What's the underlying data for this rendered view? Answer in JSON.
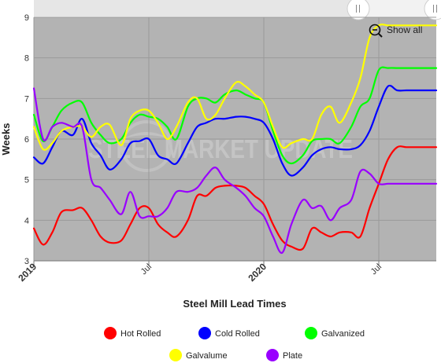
{
  "chart_data": {
    "type": "line",
    "title": "",
    "xlabel": "Steel Mill Lead Times",
    "ylabel": "Weeks",
    "ylim": [
      3,
      9
    ],
    "yticks": [
      "3",
      "4",
      "5",
      "6",
      "7",
      "8",
      "9"
    ],
    "x_tick_labels": [
      {
        "label": "2019",
        "x": 2019.0,
        "major": true
      },
      {
        "label": "Jul",
        "x": 2019.5,
        "major": false
      },
      {
        "label": "2020",
        "x": 2020.0,
        "major": true
      },
      {
        "label": "Jul",
        "x": 2020.5,
        "major": false
      }
    ],
    "xlim": [
      2019.0,
      2020.75
    ],
    "grid": true,
    "legend_position": "bottom",
    "watermark": "STEEL MARKET UPDATE",
    "reset_zoom_label": "Show all",
    "series": [
      {
        "name": "Hot Rolled",
        "color": "#ff0000",
        "x": [
          2019.0,
          2019.04,
          2019.08,
          2019.12,
          2019.17,
          2019.21,
          2019.25,
          2019.29,
          2019.33,
          2019.38,
          2019.42,
          2019.46,
          2019.5,
          2019.54,
          2019.58,
          2019.62,
          2019.67,
          2019.71,
          2019.75,
          2019.79,
          2019.83,
          2019.88,
          2019.92,
          2019.96,
          2020.0,
          2020.04,
          2020.08,
          2020.12,
          2020.17,
          2020.21,
          2020.25,
          2020.29,
          2020.33,
          2020.38,
          2020.42,
          2020.46,
          2020.5,
          2020.54,
          2020.58,
          2020.62,
          2020.67,
          2020.71,
          2020.75
        ],
        "y": [
          3.8,
          3.4,
          3.7,
          4.2,
          4.25,
          4.3,
          4.0,
          3.6,
          3.45,
          3.5,
          3.9,
          4.3,
          4.3,
          3.9,
          3.7,
          3.6,
          4.0,
          4.6,
          4.6,
          4.8,
          4.85,
          4.85,
          4.8,
          4.6,
          4.4,
          3.9,
          3.5,
          3.35,
          3.3,
          3.8,
          3.7,
          3.6,
          3.7,
          3.7,
          3.6,
          4.3,
          4.9,
          5.5,
          5.8,
          5.8,
          5.8,
          5.8,
          5.8
        ]
      },
      {
        "name": "Cold Rolled",
        "color": "#0000ff",
        "x": [
          2019.0,
          2019.04,
          2019.08,
          2019.12,
          2019.17,
          2019.21,
          2019.25,
          2019.29,
          2019.33,
          2019.38,
          2019.42,
          2019.46,
          2019.5,
          2019.54,
          2019.58,
          2019.62,
          2019.67,
          2019.71,
          2019.75,
          2019.79,
          2019.83,
          2019.88,
          2019.92,
          2019.96,
          2020.0,
          2020.04,
          2020.08,
          2020.12,
          2020.17,
          2020.21,
          2020.25,
          2020.29,
          2020.33,
          2020.38,
          2020.42,
          2020.46,
          2020.5,
          2020.54,
          2020.58,
          2020.62,
          2020.67,
          2020.71,
          2020.75
        ],
        "y": [
          5.55,
          5.4,
          5.8,
          6.2,
          6.1,
          6.5,
          5.9,
          5.6,
          5.25,
          5.5,
          5.9,
          5.95,
          6.0,
          5.6,
          5.5,
          5.4,
          5.9,
          6.3,
          6.4,
          6.5,
          6.5,
          6.55,
          6.55,
          6.5,
          6.4,
          6.0,
          5.4,
          5.1,
          5.3,
          5.6,
          5.75,
          5.8,
          5.75,
          5.75,
          5.85,
          6.2,
          6.8,
          7.3,
          7.2,
          7.2,
          7.2,
          7.2,
          7.2
        ]
      },
      {
        "name": "Galvanized",
        "color": "#00ff00",
        "x": [
          2019.0,
          2019.04,
          2019.08,
          2019.12,
          2019.17,
          2019.21,
          2019.25,
          2019.29,
          2019.33,
          2019.38,
          2019.42,
          2019.46,
          2019.5,
          2019.54,
          2019.58,
          2019.62,
          2019.67,
          2019.71,
          2019.75,
          2019.79,
          2019.83,
          2019.88,
          2019.92,
          2019.96,
          2020.0,
          2020.04,
          2020.08,
          2020.12,
          2020.17,
          2020.21,
          2020.25,
          2020.29,
          2020.33,
          2020.38,
          2020.42,
          2020.46,
          2020.5,
          2020.54,
          2020.58,
          2020.62,
          2020.67,
          2020.71,
          2020.75
        ],
        "y": [
          6.6,
          5.95,
          6.3,
          6.7,
          6.9,
          6.9,
          6.4,
          6.1,
          5.9,
          6.0,
          6.4,
          6.6,
          6.55,
          6.5,
          6.3,
          6.0,
          6.8,
          7.0,
          7.0,
          6.9,
          7.1,
          7.2,
          7.1,
          7.0,
          6.9,
          6.2,
          5.6,
          5.4,
          5.6,
          5.95,
          6.0,
          6.0,
          5.9,
          6.3,
          6.8,
          7.0,
          7.7,
          7.75,
          7.75,
          7.75,
          7.75,
          7.75,
          7.75
        ]
      },
      {
        "name": "Galvalume",
        "color": "#ffff00",
        "x": [
          2019.0,
          2019.04,
          2019.08,
          2019.12,
          2019.17,
          2019.21,
          2019.25,
          2019.29,
          2019.33,
          2019.38,
          2019.42,
          2019.46,
          2019.5,
          2019.54,
          2019.58,
          2019.62,
          2019.67,
          2019.71,
          2019.75,
          2019.79,
          2019.83,
          2019.88,
          2019.92,
          2019.96,
          2020.0,
          2020.04,
          2020.08,
          2020.12,
          2020.17,
          2020.21,
          2020.25,
          2020.29,
          2020.33,
          2020.38,
          2020.42,
          2020.46,
          2020.5,
          2020.54,
          2020.58,
          2020.62,
          2020.67,
          2020.71,
          2020.75
        ],
        "y": [
          6.3,
          5.75,
          5.9,
          6.2,
          6.3,
          6.3,
          6.05,
          6.3,
          6.35,
          5.85,
          6.5,
          6.7,
          6.7,
          6.4,
          6.0,
          6.3,
          6.9,
          7.0,
          6.5,
          6.6,
          7.0,
          7.4,
          7.3,
          7.1,
          6.9,
          6.3,
          5.8,
          5.9,
          6.0,
          6.0,
          6.6,
          6.8,
          6.4,
          6.9,
          7.5,
          8.5,
          8.8,
          8.8,
          8.8,
          8.8,
          8.8,
          8.8,
          8.8
        ]
      },
      {
        "name": "Plate",
        "color": "#9900ff",
        "x": [
          2019.0,
          2019.04,
          2019.08,
          2019.12,
          2019.17,
          2019.21,
          2019.25,
          2019.29,
          2019.33,
          2019.38,
          2019.42,
          2019.46,
          2019.5,
          2019.54,
          2019.58,
          2019.62,
          2019.67,
          2019.71,
          2019.75,
          2019.79,
          2019.83,
          2019.88,
          2019.92,
          2019.96,
          2020.0,
          2020.04,
          2020.08,
          2020.12,
          2020.17,
          2020.21,
          2020.25,
          2020.29,
          2020.33,
          2020.38,
          2020.42,
          2020.46,
          2020.5,
          2020.54,
          2020.58,
          2020.62,
          2020.67,
          2020.71,
          2020.75
        ],
        "y": [
          7.25,
          6.0,
          6.3,
          6.4,
          6.3,
          6.3,
          5.0,
          4.8,
          4.5,
          4.15,
          4.7,
          4.1,
          4.1,
          4.1,
          4.3,
          4.7,
          4.7,
          4.8,
          5.1,
          5.3,
          5.0,
          4.8,
          4.6,
          4.3,
          4.1,
          3.6,
          3.2,
          3.9,
          4.5,
          4.3,
          4.35,
          4.0,
          4.3,
          4.5,
          5.2,
          5.15,
          4.9,
          4.9,
          4.9,
          4.9,
          4.9,
          4.9,
          4.9
        ]
      }
    ]
  }
}
